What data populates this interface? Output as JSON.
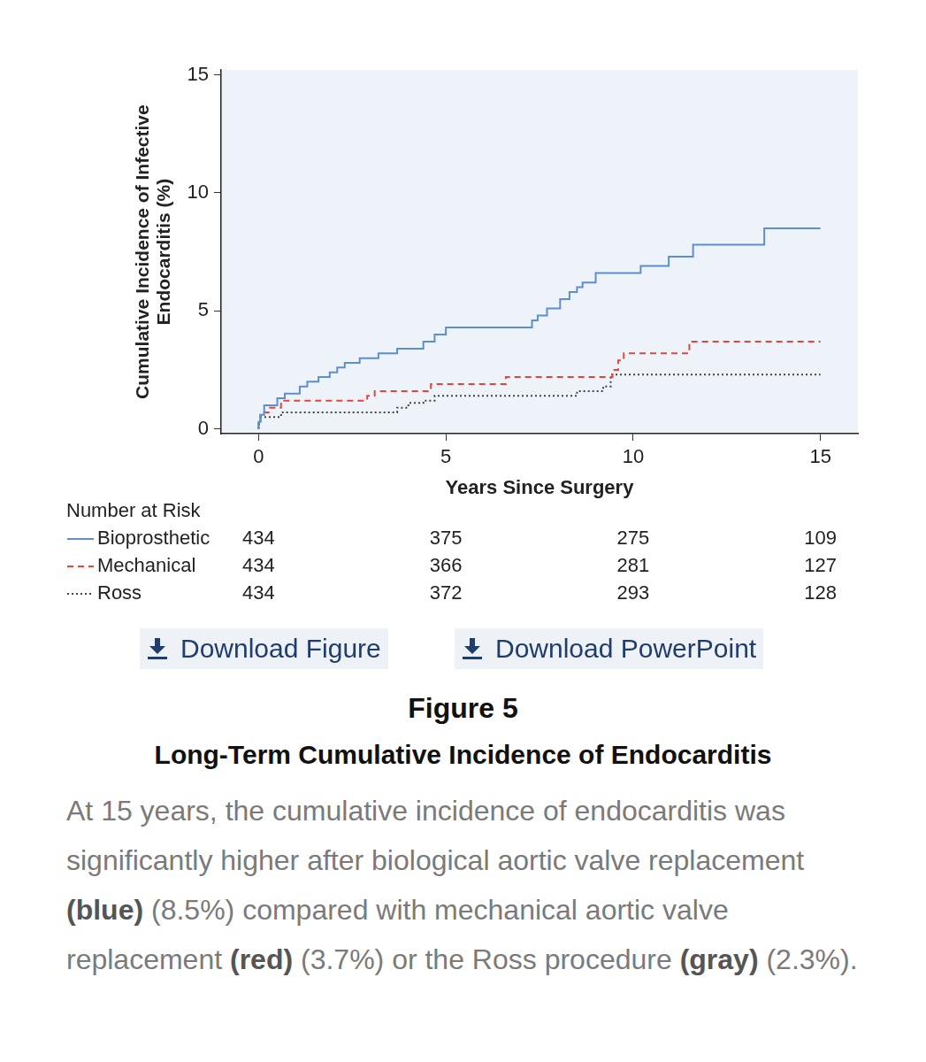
{
  "chart_data": {
    "type": "line",
    "y_label": [
      "Cumulative Incidence of Infective",
      "Endocarditis (%)"
    ],
    "x_label": "Years Since Surgery",
    "xlim": [
      -1,
      16
    ],
    "xticks": [
      0,
      5,
      10,
      15
    ],
    "ylim": [
      -0.2,
      15.2
    ],
    "yticks": [
      0,
      5,
      10,
      15
    ],
    "grid": false,
    "at_risk_title": "Number at Risk",
    "at_risk_x": [
      0,
      5,
      10,
      15
    ],
    "series": [
      {
        "name": "Bioprosthetic",
        "color": "#5b8fd0",
        "line_style": "solid",
        "x": [
          0,
          0.05,
          0.15,
          0.5,
          0.7,
          1.1,
          1.3,
          1.6,
          1.9,
          2.1,
          2.3,
          2.7,
          3.2,
          3.7,
          4.4,
          4.7,
          5.0,
          7.3,
          7.45,
          7.7,
          8.05,
          8.3,
          8.5,
          8.65,
          9.0,
          10.2,
          10.95,
          11.6,
          13.5,
          14.6,
          15.0
        ],
        "values": [
          0,
          0.3,
          0.6,
          1.0,
          1.3,
          1.5,
          1.8,
          2.0,
          2.2,
          2.4,
          2.6,
          2.8,
          3.0,
          3.2,
          3.4,
          3.7,
          4.0,
          4.3,
          4.6,
          4.8,
          5.1,
          5.5,
          5.8,
          6.0,
          6.2,
          6.6,
          6.9,
          7.3,
          7.8,
          8.5,
          8.5
        ],
        "at_risk": [
          434,
          375,
          275,
          109
        ]
      },
      {
        "name": "Mechanical",
        "color": "#e0463c",
        "line_style": "dashed",
        "x": [
          0,
          0.05,
          0.3,
          0.6,
          2.9,
          3.1,
          4.6,
          6.6,
          9.45,
          9.6,
          9.75,
          11.5,
          13.2,
          15.0
        ],
        "values": [
          0,
          0.4,
          0.7,
          0.9,
          1.2,
          1.4,
          1.6,
          1.9,
          2.2,
          2.5,
          2.9,
          3.2,
          3.7,
          3.7
        ],
        "at_risk": [
          434,
          366,
          281,
          127
        ]
      },
      {
        "name": "Ross",
        "color": "#444444",
        "line_style": "dotted",
        "x": [
          0,
          0.05,
          0.6,
          3.7,
          4.0,
          4.4,
          4.7,
          8.5,
          9.2,
          9.4,
          12.4,
          15.0
        ],
        "values": [
          0,
          0.2,
          0.5,
          0.7,
          0.9,
          1.1,
          1.2,
          1.4,
          1.6,
          1.8,
          2.3,
          2.3
        ],
        "at_risk": [
          434,
          372,
          293,
          128
        ]
      }
    ]
  },
  "figure": {
    "buttons": [
      "Download Figure",
      "Download PowerPoint"
    ],
    "label": "Figure 5",
    "title": "Long-Term Cumulative Incidence of Endocarditis",
    "caption": [
      {
        "text": "At 15 years, the cumulative incidence of endocarditis was significantly higher after biological aortic valve replacement ",
        "bold": false
      },
      {
        "text": "(blue)",
        "bold": true
      },
      {
        "text": " (8.5%) compared with mechanical aortic valve replacement ",
        "bold": false
      },
      {
        "text": "(red)",
        "bold": true
      },
      {
        "text": " (3.7%) or the Ross procedure ",
        "bold": false
      },
      {
        "text": "(gray)",
        "bold": true
      },
      {
        "text": " (2.3%).",
        "bold": false
      }
    ]
  }
}
